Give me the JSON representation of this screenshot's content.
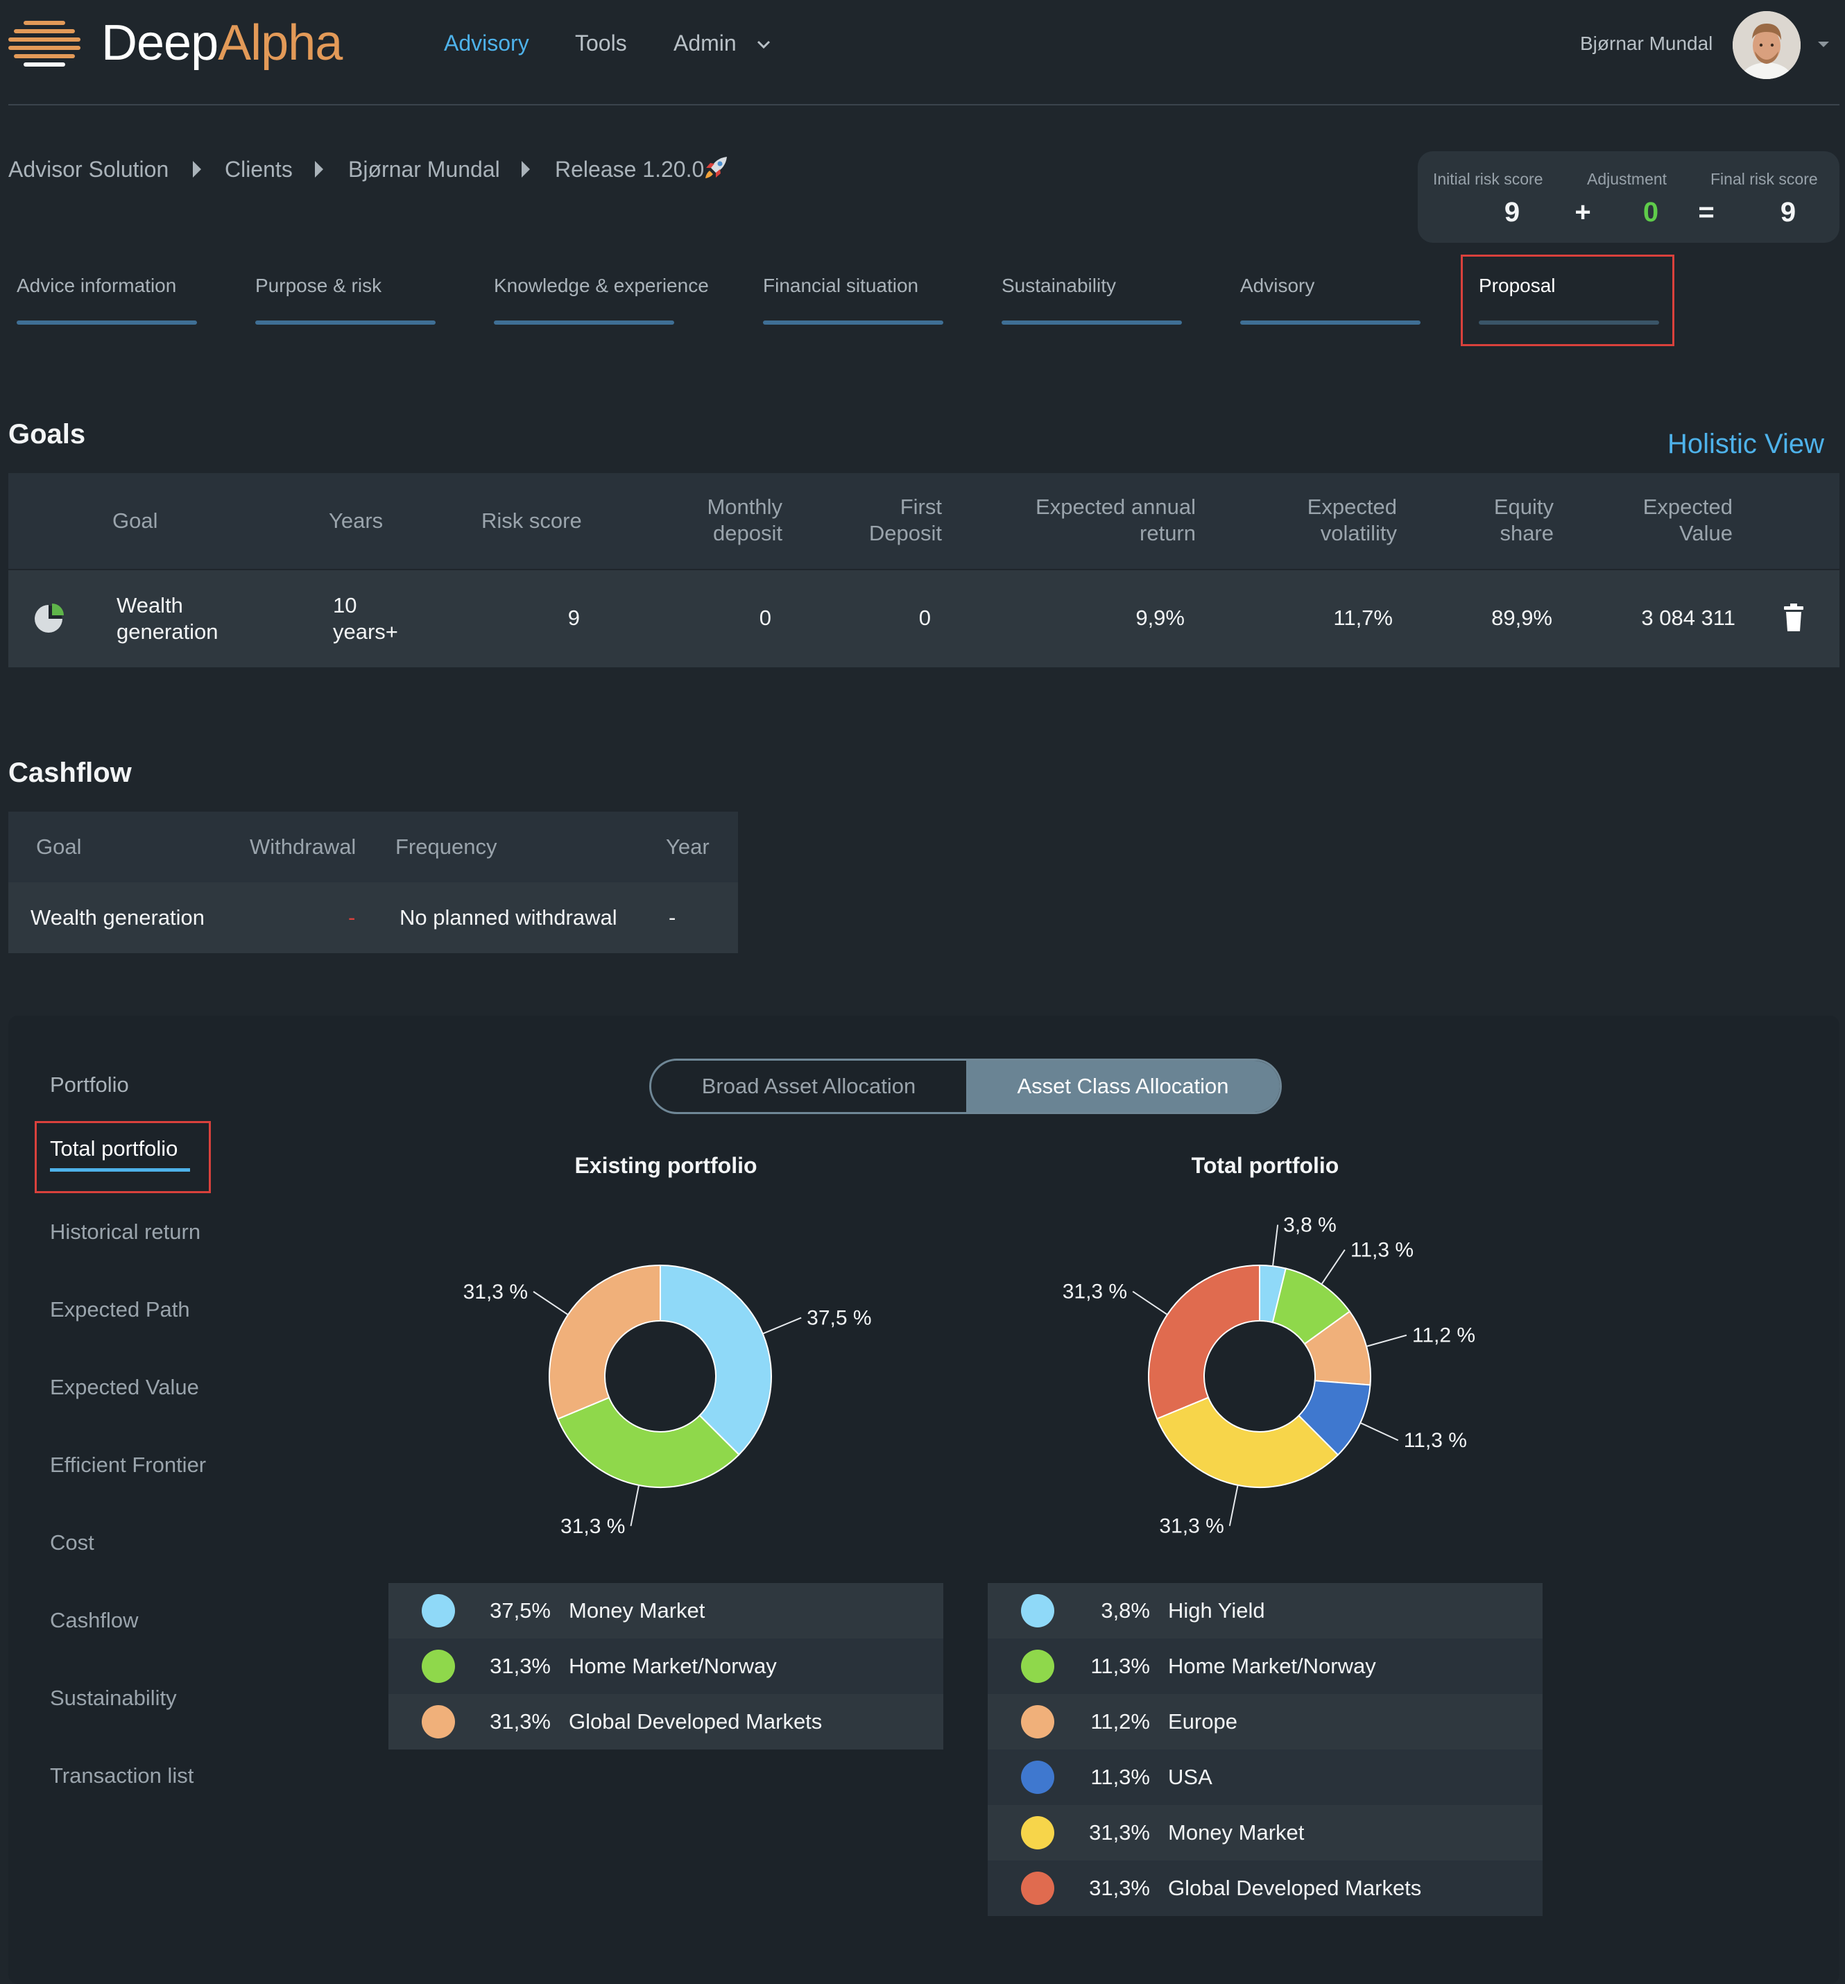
{
  "header": {
    "logo_part1": "Deep",
    "logo_part2": "Alpha",
    "nav": {
      "advisory": "Advisory",
      "tools": "Tools",
      "admin": "Admin"
    },
    "user_name": "Bjørnar Mundal"
  },
  "breadcrumb": [
    "Advisor Solution",
    "Clients",
    "Bjørnar Mundal",
    "Release 1.20.0"
  ],
  "risk": {
    "initial_label": "Initial risk score",
    "initial_value": "9",
    "adjustment_label": "Adjustment",
    "adjustment_value": "0",
    "final_label": "Final risk score",
    "final_value": "9",
    "plus": "+",
    "equals": "=",
    "adjustment_color": "#5fcc4a"
  },
  "steps": [
    "Advice information",
    "Purpose & risk",
    "Knowledge & experience",
    "Financial situation",
    "Sustainability",
    "Advisory",
    "Proposal"
  ],
  "goals": {
    "title": "Goals",
    "holistic_view": "Holistic View",
    "headers": {
      "goal": "Goal",
      "years": "Years",
      "risk_score": "Risk score",
      "monthly_1": "Monthly",
      "monthly_2": "deposit",
      "first_1": "First",
      "first_2": "Deposit",
      "ear_1": "Expected annual",
      "ear_2": "return",
      "vol_1": "Expected",
      "vol_2": "volatility",
      "eq_1": "Equity",
      "eq_2": "share",
      "ev_1": "Expected",
      "ev_2": "Value"
    },
    "row": {
      "goal_1": "Wealth",
      "goal_2": "generation",
      "years_1": "10",
      "years_2": "years+",
      "risk_score": "9",
      "monthly": "0",
      "first": "0",
      "return": "9,9%",
      "volatility": "11,7%",
      "equity": "89,9%",
      "value": "3 084 311"
    }
  },
  "cashflow": {
    "title": "Cashflow",
    "headers": {
      "goal": "Goal",
      "withdrawal": "Withdrawal",
      "frequency": "Frequency",
      "year": "Year"
    },
    "row": {
      "goal": "Wealth generation",
      "withdrawal": "-",
      "frequency": "No planned withdrawal",
      "year": "-"
    }
  },
  "portfolio": {
    "menu": [
      "Portfolio",
      "Total portfolio",
      "Historical return",
      "Expected Path",
      "Expected Value",
      "Efficient Frontier",
      "Cost",
      "Cashflow",
      "Sustainability",
      "Transaction list"
    ],
    "toggle": {
      "broad": "Broad Asset Allocation",
      "class": "Asset Class Allocation"
    }
  },
  "chart_data": [
    {
      "type": "pie",
      "title": "Existing portfolio",
      "slices": [
        {
          "name": "Money Market",
          "value": 37.5,
          "label": "37,5 %",
          "legend_pct": "37,5%",
          "color": "#8fd9f8"
        },
        {
          "name": "Home Market/Norway",
          "value": 31.3,
          "label": "31,3 %",
          "legend_pct": "31,3%",
          "color": "#8fd84b"
        },
        {
          "name": "Global Developed Markets",
          "value": 31.3,
          "label": "31,3 %",
          "legend_pct": "31,3%",
          "color": "#f0b07a"
        }
      ]
    },
    {
      "type": "pie",
      "title": "Total portfolio",
      "slices": [
        {
          "name": "High Yield",
          "value": 3.8,
          "label": "3,8 %",
          "legend_pct": "3,8%",
          "color": "#8fd9f8"
        },
        {
          "name": "Home Market/Norway",
          "value": 11.3,
          "label": "11,3 %",
          "legend_pct": "11,3%",
          "color": "#8fd84b"
        },
        {
          "name": "Europe",
          "value": 11.2,
          "label": "11,2 %",
          "legend_pct": "11,2%",
          "color": "#f0b07a"
        },
        {
          "name": "USA",
          "value": 11.3,
          "label": "11,3 %",
          "legend_pct": "11,3%",
          "color": "#3f78cf"
        },
        {
          "name": "Money Market",
          "value": 31.3,
          "label": "31,3 %",
          "legend_pct": "31,3%",
          "color": "#f7d54a"
        },
        {
          "name": "Global Developed Markets",
          "value": 31.3,
          "label": "31,3 %",
          "legend_pct": "31,3%",
          "color": "#e06b4f"
        }
      ]
    }
  ]
}
